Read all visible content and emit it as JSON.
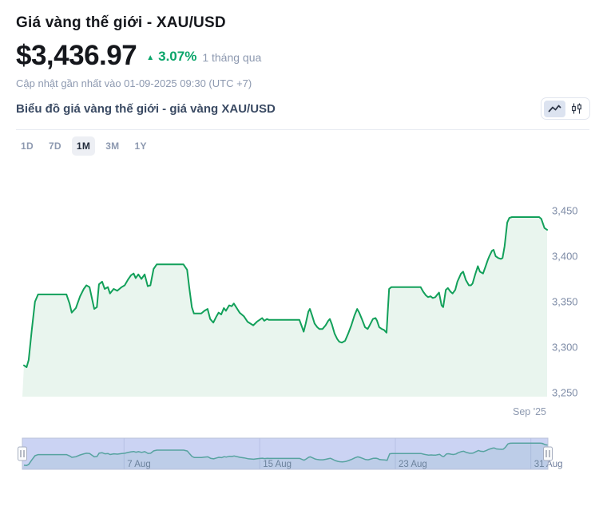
{
  "header": {
    "title": "Giá vàng thế giới - XAU/USD",
    "price": "$3,436.97",
    "change_arrow": "▲",
    "change_percent": "3.07%",
    "change_direction": "up",
    "change_period": "1 tháng qua",
    "updated_text": "Cập nhật gần nhất vào 01-09-2025 09:30 (UTC +7)"
  },
  "chart_header": {
    "subtitle": "Biểu đồ giá vàng thế giới - giá vàng XAU/USD",
    "chart_type_options": [
      {
        "name": "line",
        "selected": true
      },
      {
        "name": "candlestick",
        "selected": false
      }
    ]
  },
  "range_tabs": [
    {
      "label": "1D",
      "selected": false
    },
    {
      "label": "7D",
      "selected": false
    },
    {
      "label": "1M",
      "selected": true
    },
    {
      "label": "3M",
      "selected": false
    },
    {
      "label": "1Y",
      "selected": false
    }
  ],
  "colors": {
    "accent_green": "#0aa56a",
    "chart_line": "#12a05a",
    "chart_fill": "#e9f5ee",
    "navigator_mask": "#cbd3f3",
    "navigator_line": "#57a3a0",
    "navigator_gridline": "#b7c0e6",
    "muted_text": "#8d99b0",
    "axis_label": "#7d8ba6"
  },
  "chart_data": {
    "type": "area",
    "title": "XAU/USD gold price, 1 month",
    "x_range": [
      "01 Aug 2025",
      "01 Sep 2025"
    ],
    "x_axis_labels": [
      {
        "label": "Sep '25",
        "t": 1.0
      }
    ],
    "y_axis": {
      "ticks": [
        {
          "label": "3,450",
          "value": 3450
        },
        {
          "label": "3,400",
          "value": 3400
        },
        {
          "label": "3,350",
          "value": 3350
        },
        {
          "label": "3,300",
          "value": 3300
        },
        {
          "label": "3,250",
          "value": 3250
        }
      ],
      "grid": false,
      "position": "right"
    },
    "series": [
      {
        "name": "XAU/USD",
        "points": [
          [
            0.003,
            3280
          ],
          [
            0.008,
            3278
          ],
          [
            0.012,
            3286
          ],
          [
            0.018,
            3319
          ],
          [
            0.024,
            3350
          ],
          [
            0.03,
            3358
          ],
          [
            0.084,
            3358
          ],
          [
            0.09,
            3348
          ],
          [
            0.094,
            3338
          ],
          [
            0.102,
            3343
          ],
          [
            0.11,
            3356
          ],
          [
            0.117,
            3364
          ],
          [
            0.122,
            3368
          ],
          [
            0.128,
            3366
          ],
          [
            0.137,
            3342
          ],
          [
            0.142,
            3344
          ],
          [
            0.146,
            3369
          ],
          [
            0.152,
            3372
          ],
          [
            0.157,
            3364
          ],
          [
            0.163,
            3366
          ],
          [
            0.167,
            3359
          ],
          [
            0.174,
            3364
          ],
          [
            0.181,
            3362
          ],
          [
            0.189,
            3366
          ],
          [
            0.195,
            3368
          ],
          [
            0.201,
            3374
          ],
          [
            0.207,
            3379
          ],
          [
            0.212,
            3381
          ],
          [
            0.216,
            3376
          ],
          [
            0.221,
            3380
          ],
          [
            0.227,
            3375
          ],
          [
            0.233,
            3380
          ],
          [
            0.239,
            3367
          ],
          [
            0.244,
            3368
          ],
          [
            0.25,
            3386
          ],
          [
            0.256,
            3391
          ],
          [
            0.307,
            3391
          ],
          [
            0.314,
            3385
          ],
          [
            0.318,
            3366
          ],
          [
            0.323,
            3344
          ],
          [
            0.327,
            3337
          ],
          [
            0.341,
            3337
          ],
          [
            0.347,
            3340
          ],
          [
            0.353,
            3342
          ],
          [
            0.358,
            3331
          ],
          [
            0.364,
            3327
          ],
          [
            0.37,
            3334
          ],
          [
            0.374,
            3338
          ],
          [
            0.379,
            3336
          ],
          [
            0.384,
            3343
          ],
          [
            0.388,
            3340
          ],
          [
            0.394,
            3346
          ],
          [
            0.399,
            3345
          ],
          [
            0.403,
            3348
          ],
          [
            0.414,
            3338
          ],
          [
            0.422,
            3334
          ],
          [
            0.429,
            3328
          ],
          [
            0.44,
            3324
          ],
          [
            0.447,
            3328
          ],
          [
            0.452,
            3330
          ],
          [
            0.457,
            3332
          ],
          [
            0.461,
            3329
          ],
          [
            0.466,
            3331
          ],
          [
            0.47,
            3330
          ],
          [
            0.528,
            3330
          ],
          [
            0.533,
            3322
          ],
          [
            0.536,
            3317
          ],
          [
            0.54,
            3326
          ],
          [
            0.545,
            3339
          ],
          [
            0.548,
            3342
          ],
          [
            0.552,
            3335
          ],
          [
            0.557,
            3326
          ],
          [
            0.562,
            3322
          ],
          [
            0.566,
            3320
          ],
          [
            0.572,
            3320
          ],
          [
            0.578,
            3324
          ],
          [
            0.583,
            3329
          ],
          [
            0.586,
            3331
          ],
          [
            0.59,
            3325
          ],
          [
            0.595,
            3315
          ],
          [
            0.6,
            3309
          ],
          [
            0.604,
            3306
          ],
          [
            0.609,
            3305
          ],
          [
            0.615,
            3307
          ],
          [
            0.621,
            3315
          ],
          [
            0.627,
            3324
          ],
          [
            0.633,
            3335
          ],
          [
            0.638,
            3342
          ],
          [
            0.642,
            3338
          ],
          [
            0.647,
            3331
          ],
          [
            0.653,
            3322
          ],
          [
            0.658,
            3320
          ],
          [
            0.662,
            3324
          ],
          [
            0.668,
            3331
          ],
          [
            0.673,
            3332
          ],
          [
            0.676,
            3329
          ],
          [
            0.68,
            3322
          ],
          [
            0.685,
            3320
          ],
          [
            0.689,
            3319
          ],
          [
            0.694,
            3316
          ],
          [
            0.696,
            3336
          ],
          [
            0.699,
            3364
          ],
          [
            0.703,
            3366
          ],
          [
            0.759,
            3366
          ],
          [
            0.764,
            3361
          ],
          [
            0.769,
            3357
          ],
          [
            0.773,
            3355
          ],
          [
            0.778,
            3356
          ],
          [
            0.782,
            3354
          ],
          [
            0.787,
            3355
          ],
          [
            0.791,
            3358
          ],
          [
            0.794,
            3360
          ],
          [
            0.799,
            3346
          ],
          [
            0.802,
            3344
          ],
          [
            0.807,
            3363
          ],
          [
            0.811,
            3365
          ],
          [
            0.816,
            3361
          ],
          [
            0.82,
            3359
          ],
          [
            0.825,
            3363
          ],
          [
            0.829,
            3372
          ],
          [
            0.836,
            3381
          ],
          [
            0.84,
            3383
          ],
          [
            0.845,
            3374
          ],
          [
            0.851,
            3368
          ],
          [
            0.855,
            3368
          ],
          [
            0.858,
            3370
          ],
          [
            0.863,
            3380
          ],
          [
            0.868,
            3389
          ],
          [
            0.872,
            3383
          ],
          [
            0.878,
            3381
          ],
          [
            0.883,
            3389
          ],
          [
            0.887,
            3396
          ],
          [
            0.89,
            3400
          ],
          [
            0.895,
            3406
          ],
          [
            0.898,
            3407
          ],
          [
            0.902,
            3400
          ],
          [
            0.907,
            3398
          ],
          [
            0.912,
            3397
          ],
          [
            0.915,
            3398
          ],
          [
            0.919,
            3411
          ],
          [
            0.924,
            3437
          ],
          [
            0.928,
            3442
          ],
          [
            0.933,
            3443
          ],
          [
            0.985,
            3443
          ],
          [
            0.989,
            3441
          ],
          [
            0.995,
            3431
          ],
          [
            1.0,
            3429
          ]
        ]
      }
    ],
    "navigator": {
      "labels": [
        {
          "label": "7 Aug",
          "t": 0.1935
        },
        {
          "label": "15 Aug",
          "t": 0.4516
        },
        {
          "label": "23 Aug",
          "t": 0.7097
        },
        {
          "label": "31 Aug",
          "t": 0.9677
        }
      ],
      "selected_range": [
        0,
        1
      ]
    }
  }
}
